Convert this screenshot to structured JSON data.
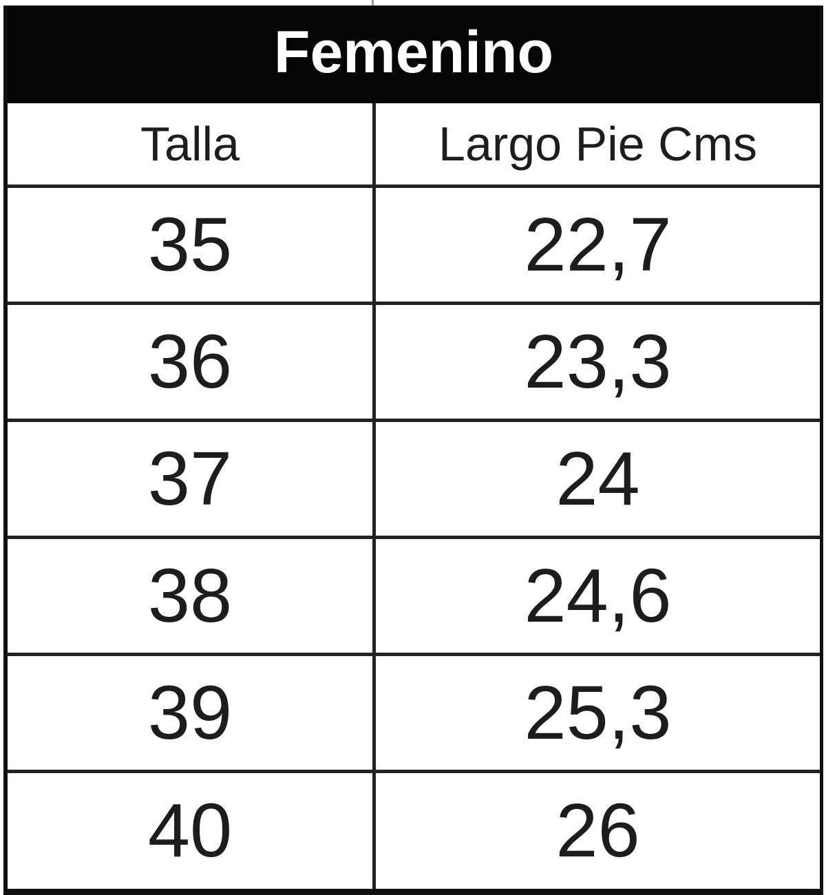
{
  "title": "Femenino",
  "table": {
    "columns": [
      "Talla",
      "Largo Pie Cms"
    ],
    "rows": [
      [
        "35",
        "22,7"
      ],
      [
        "36",
        "23,3"
      ],
      [
        "37",
        "24"
      ],
      [
        "38",
        "24,6"
      ],
      [
        "39",
        "25,3"
      ],
      [
        "40",
        "26"
      ]
    ]
  },
  "colors": {
    "band_bg": "#050505",
    "band_text": "#ffffff",
    "border_inner": "#222222",
    "border_outer": "#101010",
    "text": "#1d1d1d",
    "background": "#ffffff"
  },
  "chart_data": {
    "type": "table",
    "title": "Femenino",
    "columns": [
      "Talla",
      "Largo Pie Cms"
    ],
    "rows": [
      [
        "35",
        "22,7"
      ],
      [
        "36",
        "23,3"
      ],
      [
        "37",
        "24"
      ],
      [
        "38",
        "24,6"
      ],
      [
        "39",
        "25,3"
      ],
      [
        "40",
        "26"
      ]
    ],
    "notes": "Women's shoe size conversion: size (Talla) to foot length in centimeters; decimal comma separators"
  }
}
